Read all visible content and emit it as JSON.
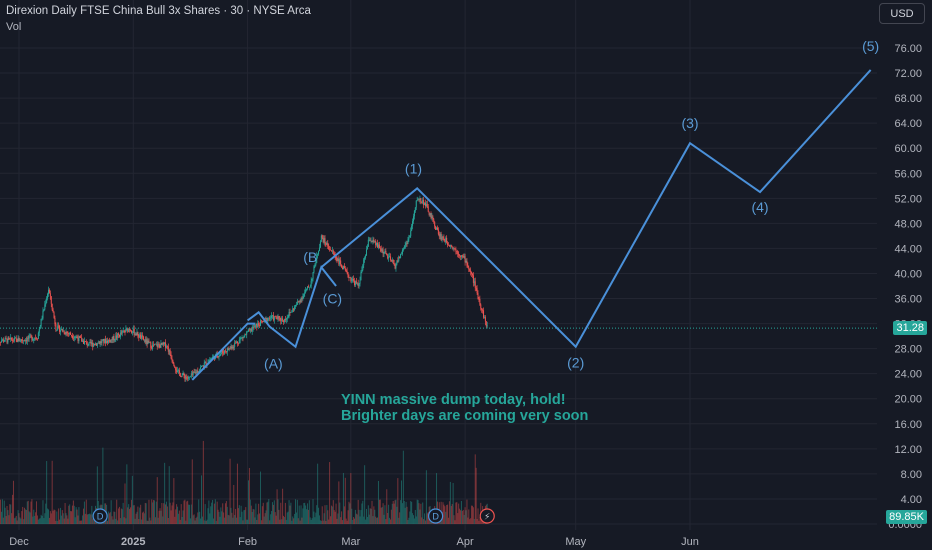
{
  "header": {
    "title": "Direxion Daily FTSE China Bull 3x Shares",
    "interval": "30",
    "exchange": "NYSE Arca",
    "sep": "·",
    "vol_label": "Vol"
  },
  "currency_button": "USD",
  "annotation": {
    "line1": "YINN massive dump today, hold!",
    "line2": "Brighter days are coming very soon"
  },
  "colors": {
    "background": "#161a25",
    "grid": "#232632",
    "up": "#26a69a",
    "down": "#ef5350",
    "wave": "#4a90d9",
    "wave_label": "#5b9bd5",
    "annotation": "#26a69a",
    "price_badge": "#26a69a",
    "volume_badge": "#26a69a"
  },
  "chart_data": {
    "type": "candlestick",
    "y_axis": {
      "min": 0,
      "max": 76,
      "ticks": [
        76,
        72,
        68,
        64,
        60,
        56,
        52,
        48,
        44,
        40,
        36,
        32,
        28,
        24,
        20,
        16,
        12,
        8,
        4,
        0
      ],
      "tick_labels": [
        "76.00",
        "72.00",
        "68.00",
        "64.00",
        "60.00",
        "56.00",
        "52.00",
        "48.00",
        "44.00",
        "40.00",
        "36.00",
        "32.00",
        "28.00",
        "24.00",
        "20.00",
        "16.00",
        "12.00",
        "8.00",
        "4.00",
        "0.0000"
      ],
      "grid": true
    },
    "x_axis": {
      "labels": [
        "Dec",
        "2025",
        "Feb",
        "Mar",
        "Apr",
        "May",
        "Jun"
      ],
      "dates": [
        "2024-12-01",
        "2025-01-01",
        "2025-02-01",
        "2025-03-01",
        "2025-04-01",
        "2025-05-01",
        "2025-06-01"
      ]
    },
    "last_price": "31.28",
    "last_volume": "89.85K",
    "price_path": [
      {
        "date": "2024-11-25",
        "price": 29.3
      },
      {
        "date": "2024-12-02",
        "price": 29.4
      },
      {
        "date": "2024-12-06",
        "price": 29.9
      },
      {
        "date": "2024-12-09",
        "price": 37.5
      },
      {
        "date": "2024-12-11",
        "price": 31.4
      },
      {
        "date": "2024-12-16",
        "price": 30.0
      },
      {
        "date": "2024-12-20",
        "price": 28.6
      },
      {
        "date": "2024-12-26",
        "price": 29.4
      },
      {
        "date": "2024-12-31",
        "price": 31.2
      },
      {
        "date": "2025-01-06",
        "price": 28.4
      },
      {
        "date": "2025-01-10",
        "price": 28.6
      },
      {
        "date": "2025-01-13",
        "price": 24.2
      },
      {
        "date": "2025-01-16",
        "price": 23.2
      },
      {
        "date": "2025-01-22",
        "price": 26.4
      },
      {
        "date": "2025-01-27",
        "price": 28.0
      },
      {
        "date": "2025-02-03",
        "price": 31.5
      },
      {
        "date": "2025-02-07",
        "price": 33.0
      },
      {
        "date": "2025-02-11",
        "price": 32.6
      },
      {
        "date": "2025-02-14",
        "price": 34.8
      },
      {
        "date": "2025-02-18",
        "price": 38.2
      },
      {
        "date": "2025-02-21",
        "price": 45.8
      },
      {
        "date": "2025-02-25",
        "price": 42.6
      },
      {
        "date": "2025-02-28",
        "price": 39.8
      },
      {
        "date": "2025-03-03",
        "price": 38.0
      },
      {
        "date": "2025-03-06",
        "price": 45.6
      },
      {
        "date": "2025-03-10",
        "price": 43.4
      },
      {
        "date": "2025-03-13",
        "price": 41.2
      },
      {
        "date": "2025-03-17",
        "price": 46.0
      },
      {
        "date": "2025-03-19",
        "price": 52.0
      },
      {
        "date": "2025-03-21",
        "price": 51.3
      },
      {
        "date": "2025-03-25",
        "price": 46.1
      },
      {
        "date": "2025-03-28",
        "price": 44.6
      },
      {
        "date": "2025-04-01",
        "price": 42.2
      },
      {
        "date": "2025-04-03",
        "price": 39.4
      },
      {
        "date": "2025-04-07",
        "price": 31.3
      }
    ],
    "wave_lines": [
      {
        "name": "impulse",
        "points": [
          {
            "date": "2025-01-17",
            "price": 23.0
          },
          {
            "date": "2025-02-01",
            "price": 32.0
          },
          {
            "date": "2025-02-03",
            "price": 32.0
          }
        ]
      },
      {
        "name": "abc",
        "points": [
          {
            "date": "2025-02-01",
            "price": 32.5
          },
          {
            "date": "2025-02-04",
            "price": 33.8
          },
          {
            "date": "2025-02-07",
            "price": 31.5
          },
          {
            "date": "2025-02-14",
            "price": 28.3
          },
          {
            "date": "2025-02-21",
            "price": 41.0
          },
          {
            "date": "2025-02-25",
            "price": 38.0
          }
        ]
      },
      {
        "name": "projection",
        "points": [
          {
            "date": "2025-02-21",
            "price": 41.0
          },
          {
            "date": "2025-03-19",
            "price": 53.6
          },
          {
            "date": "2025-05-01",
            "price": 28.3
          },
          {
            "date": "2025-06-01",
            "price": 60.8
          },
          {
            "date": "2025-06-20",
            "price": 53.0
          },
          {
            "date": "2025-07-20",
            "price": 72.5
          }
        ]
      }
    ],
    "wave_labels": [
      {
        "text": "(A)",
        "date": "2025-02-08",
        "price": 24.8
      },
      {
        "text": "(B",
        "date": "2025-02-18",
        "price": 41.8
      },
      {
        "text": "(C)",
        "date": "2025-02-24",
        "price": 35.2
      },
      {
        "text": "(1)",
        "date": "2025-03-18",
        "price": 56.0
      },
      {
        "text": "(2)",
        "date": "2025-05-01",
        "price": 25.0
      },
      {
        "text": "(3)",
        "date": "2025-06-01",
        "price": 63.2
      },
      {
        "text": "(4)",
        "date": "2025-06-20",
        "price": 49.8
      },
      {
        "text": "(5)",
        "date": "2025-07-20",
        "price": 75.5
      }
    ],
    "event_markers": [
      {
        "kind": "dividend",
        "symbol": "D",
        "date": "2024-12-23"
      },
      {
        "kind": "dividend",
        "symbol": "D",
        "date": "2025-03-24"
      },
      {
        "kind": "earnings",
        "symbol": "⚡",
        "date": "2025-04-07"
      }
    ]
  }
}
